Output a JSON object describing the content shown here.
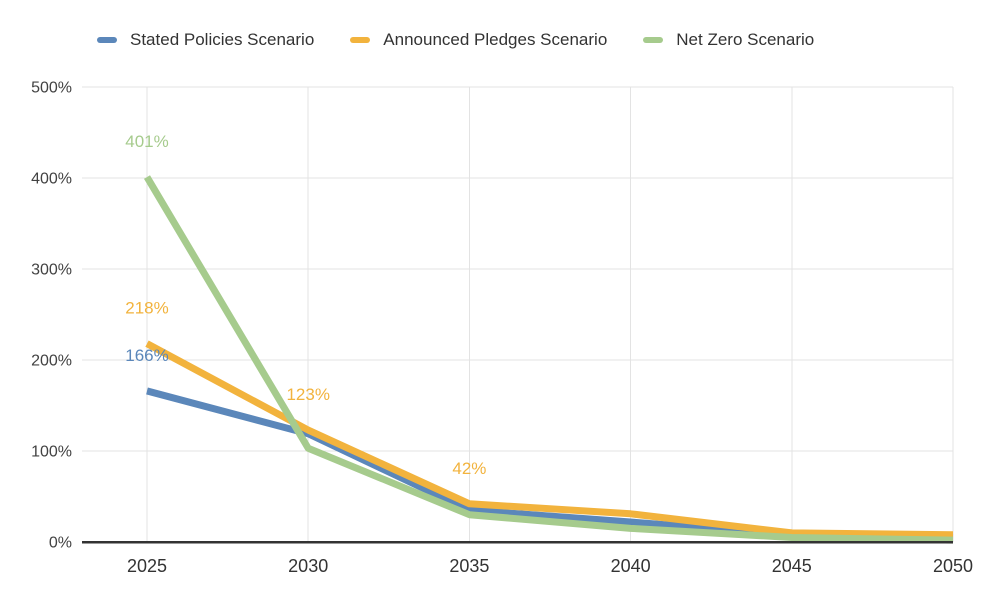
{
  "legend": {
    "position": "top"
  },
  "colors": {
    "background": "#FFFFFF",
    "gridline": "#E3E3E3",
    "axis_line": "#333333",
    "y_axis_text": "#424242",
    "x_axis_text": "#333333",
    "legend_text": "#333333"
  },
  "chart_data": {
    "type": "line",
    "title": "",
    "xlabel": "",
    "ylabel": "",
    "x": [
      "2025",
      "2030",
      "2035",
      "2040",
      "2045",
      "2050"
    ],
    "ylim": [
      0,
      500
    ],
    "yticks": [
      "0%",
      "100%",
      "200%",
      "300%",
      "400%",
      "500%"
    ],
    "ytick_values": [
      0,
      100,
      200,
      300,
      400,
      500
    ],
    "grid": true,
    "legend_position": "top",
    "series": [
      {
        "name": "Stated Policies Scenario",
        "color": "#5B87BA",
        "values": [
          166,
          119,
          35,
          22,
          8,
          5
        ]
      },
      {
        "name": "Announced Pledges Scenario",
        "color": "#F2B33D",
        "values": [
          218,
          123,
          42,
          31,
          10,
          8
        ]
      },
      {
        "name": "Net Zero Scenario",
        "color": "#A6CB8D",
        "values": [
          401,
          103,
          30,
          15,
          5,
          2
        ]
      }
    ],
    "data_labels": [
      {
        "series_index": 2,
        "x_index": 0,
        "text": "401%"
      },
      {
        "series_index": 1,
        "x_index": 0,
        "text": "218%"
      },
      {
        "series_index": 0,
        "x_index": 0,
        "text": "166%"
      },
      {
        "series_index": 1,
        "x_index": 1,
        "text": "123%"
      },
      {
        "series_index": 1,
        "x_index": 2,
        "text": "42%"
      }
    ]
  }
}
